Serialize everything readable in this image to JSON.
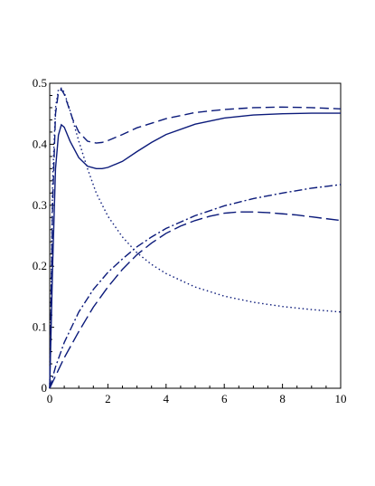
{
  "chart_data": {
    "type": "line",
    "title": "",
    "xlabel": "",
    "ylabel": "",
    "xlim": [
      0,
      10
    ],
    "ylim": [
      0,
      0.5
    ],
    "grid": false,
    "legend": "none",
    "x_ticks": [
      0,
      2,
      4,
      6,
      8,
      10
    ],
    "y_ticks": [
      0,
      0.1,
      0.2,
      0.3,
      0.4,
      0.5
    ],
    "x_tick_labels": [
      "0",
      "2",
      "4",
      "6",
      "8",
      "10"
    ],
    "y_tick_labels": [
      "0",
      "0.1",
      "0.2",
      "0.3",
      "0.4",
      "0.5"
    ],
    "line_color": "#0b1a7a",
    "series": [
      {
        "style": "solid",
        "x": [
          0,
          0.1,
          0.2,
          0.3,
          0.4,
          0.5,
          0.7,
          1.0,
          1.3,
          1.6,
          1.8,
          2.0,
          2.5,
          3.0,
          3.5,
          4.0,
          5.0,
          6.0,
          7.0,
          8.0,
          9.0,
          10.0
        ],
        "y": [
          0,
          0.2,
          0.36,
          0.415,
          0.432,
          0.428,
          0.405,
          0.378,
          0.364,
          0.36,
          0.36,
          0.362,
          0.372,
          0.388,
          0.403,
          0.416,
          0.433,
          0.443,
          0.448,
          0.45,
          0.451,
          0.451
        ]
      },
      {
        "style": "dash",
        "x": [
          0,
          0.1,
          0.2,
          0.3,
          0.4,
          0.5,
          0.6,
          0.8,
          1.0,
          1.3,
          1.6,
          1.8,
          2.0,
          2.5,
          3.0,
          4.0,
          5.0,
          6.0,
          7.0,
          8.0,
          9.0,
          10.0
        ],
        "y": [
          0,
          0.3,
          0.45,
          0.485,
          0.49,
          0.482,
          0.468,
          0.44,
          0.42,
          0.405,
          0.402,
          0.403,
          0.406,
          0.416,
          0.427,
          0.442,
          0.452,
          0.457,
          0.46,
          0.461,
          0.46,
          0.458
        ]
      },
      {
        "style": "dot",
        "x": [
          0,
          0.1,
          0.2,
          0.3,
          0.4,
          0.5,
          0.7,
          1.0,
          1.3,
          1.6,
          2.0,
          2.5,
          3.0,
          3.5,
          4.0,
          5.0,
          6.0,
          7.0,
          8.0,
          9.0,
          10.0
        ],
        "y": [
          0,
          0.34,
          0.46,
          0.49,
          0.492,
          0.485,
          0.455,
          0.405,
          0.36,
          0.32,
          0.282,
          0.248,
          0.222,
          0.203,
          0.188,
          0.166,
          0.151,
          0.141,
          0.134,
          0.129,
          0.125
        ]
      },
      {
        "style": "dashdot",
        "x": [
          0,
          0.2,
          0.5,
          1.0,
          1.5,
          2.0,
          2.5,
          3.0,
          3.5,
          4.0,
          5.0,
          6.0,
          7.0,
          8.0,
          9.0,
          10.0
        ],
        "y": [
          0,
          0.035,
          0.075,
          0.125,
          0.162,
          0.19,
          0.212,
          0.232,
          0.248,
          0.262,
          0.283,
          0.299,
          0.311,
          0.32,
          0.328,
          0.334
        ]
      },
      {
        "style": "longdash",
        "x": [
          0,
          0.2,
          0.5,
          1.0,
          1.5,
          2.0,
          2.5,
          3.0,
          3.5,
          4.0,
          4.5,
          5.0,
          5.5,
          6.0,
          6.5,
          7.0,
          7.5,
          8.0,
          8.5,
          9.0,
          9.5,
          10.0
        ],
        "y": [
          0,
          0.02,
          0.05,
          0.093,
          0.133,
          0.166,
          0.195,
          0.219,
          0.238,
          0.254,
          0.266,
          0.275,
          0.282,
          0.287,
          0.289,
          0.289,
          0.288,
          0.286,
          0.284,
          0.281,
          0.278,
          0.275
        ]
      }
    ]
  }
}
